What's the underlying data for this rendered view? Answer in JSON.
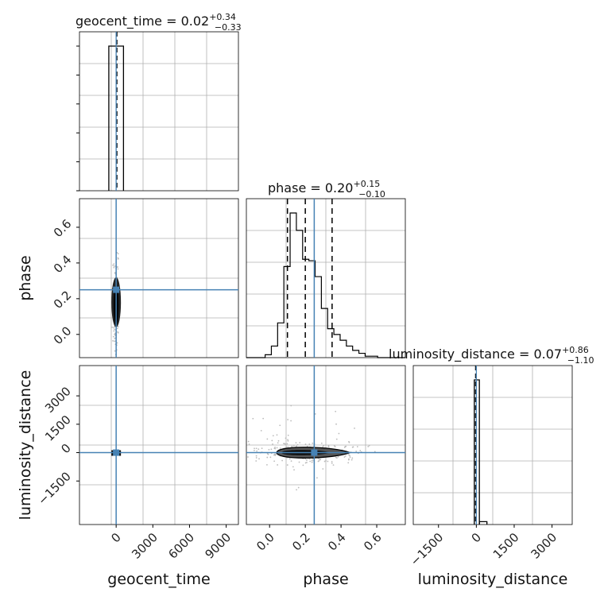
{
  "truth_color": "#4682b4",
  "chart_data": {
    "type": "corner",
    "parameters": [
      "geocent_time",
      "phase",
      "luminosity_distance"
    ],
    "truths": {
      "geocent_time": 0,
      "phase": 0.25,
      "luminosity_distance": 0
    },
    "diagonal": [
      {
        "parameter": "geocent_time",
        "title": {
          "name": "geocent_time",
          "median": "0.02",
          "plus": "+0.34",
          "minus": "−0.33"
        },
        "xlim": [
          -3000,
          10000
        ],
        "bins": [
          {
            "x0": -600,
            "x1": 600,
            "count": 1.0
          }
        ],
        "quantiles": [
          -0.31,
          0.02,
          0.36
        ]
      },
      {
        "parameter": "phase",
        "title": {
          "name": "phase",
          "median": "0.20",
          "plus": "+0.15",
          "minus": "−0.10"
        },
        "xlim": [
          -0.13,
          0.76
        ],
        "bin_edges": [
          -0.13,
          -0.095,
          -0.06,
          -0.025,
          0.01,
          0.045,
          0.08,
          0.115,
          0.15,
          0.185,
          0.22,
          0.255,
          0.29,
          0.325,
          0.36,
          0.395,
          0.43,
          0.465,
          0.5,
          0.535,
          0.57,
          0.605,
          0.64,
          0.675,
          0.71,
          0.745,
          0.76
        ],
        "counts": [
          0,
          0,
          0,
          0.02,
          0.08,
          0.24,
          0.63,
          1.0,
          0.88,
          0.68,
          0.67,
          0.56,
          0.34,
          0.2,
          0.16,
          0.12,
          0.08,
          0.05,
          0.03,
          0.01,
          0.01,
          0,
          0,
          0,
          0,
          0
        ],
        "quantiles": [
          0.1,
          0.2,
          0.35
        ]
      },
      {
        "parameter": "luminosity_distance",
        "title": {
          "name": "luminosity_distance",
          "median": "0.07",
          "plus": "+0.86",
          "minus": "−1.10"
        },
        "xlim": [
          -2500,
          3800
        ],
        "bins": [
          {
            "x0": -80,
            "x1": 120,
            "count": 1.0
          },
          {
            "x0": 120,
            "x1": 420,
            "count": 0.02
          }
        ],
        "quantiles": [
          -1.03,
          0.07,
          0.93
        ]
      }
    ],
    "pairs": [
      {
        "x": "geocent_time",
        "y": "phase",
        "xlim": [
          -3000,
          10000
        ],
        "ylim": [
          -0.13,
          0.76
        ],
        "contour_center": [
          0,
          0.15
        ],
        "contour_x_halfwidth": 200,
        "contour_y_range": [
          0.04,
          0.32
        ]
      },
      {
        "x": "geocent_time",
        "y": "luminosity_distance",
        "xlim": [
          -3000,
          10000
        ],
        "ylim": [
          -3800,
          4600
        ],
        "contour_center": [
          0,
          0
        ],
        "contour_x_halfwidth": 300,
        "contour_y_halfheight": 150
      },
      {
        "x": "phase",
        "y": "luminosity_distance",
        "xlim": [
          -0.13,
          0.76
        ],
        "ylim": [
          -3800,
          4600
        ],
        "contour_x_range": [
          0.04,
          0.45
        ],
        "contour_y_halfheight": 280
      }
    ],
    "ticks": {
      "geocent_time": [
        "0",
        "3000",
        "6000",
        "9000"
      ],
      "phase": [
        "0.0",
        "0.2",
        "0.4",
        "0.6"
      ],
      "luminosity_distance": [
        "−1500",
        "0",
        "1500",
        "3000"
      ]
    },
    "xlabels": [
      "geocent_time",
      "phase",
      "luminosity_distance"
    ],
    "ylabels": [
      "phase",
      "luminosity_distance"
    ]
  }
}
